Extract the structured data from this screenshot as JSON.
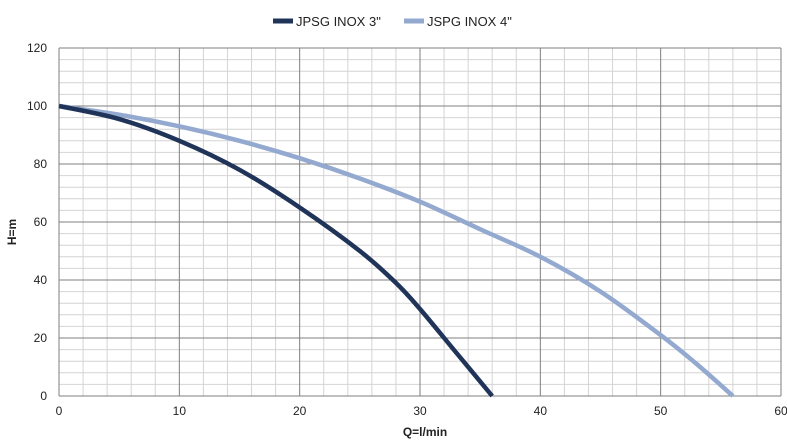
{
  "chart_data": {
    "type": "line",
    "title": "",
    "xlabel": "Q=l/min",
    "ylabel": "H=m",
    "xlim": [
      0,
      60
    ],
    "ylim": [
      0,
      120
    ],
    "x_major_ticks": [
      0,
      10,
      20,
      30,
      40,
      50,
      60
    ],
    "y_major_ticks": [
      0,
      20,
      40,
      60,
      80,
      100,
      120
    ],
    "x_minor_step": 2,
    "y_minor_step": 4,
    "grid": true,
    "legend_position": "top-center",
    "series": [
      {
        "name": "JPSG INOX 3\"",
        "color": "#1f3458",
        "points": [
          [
            0,
            100
          ],
          [
            5,
            95.5
          ],
          [
            10,
            88
          ],
          [
            15,
            78
          ],
          [
            20,
            65
          ],
          [
            25,
            50
          ],
          [
            28,
            39
          ],
          [
            30,
            30
          ],
          [
            33,
            15
          ],
          [
            36,
            0
          ]
        ]
      },
      {
        "name": "JSPG INOX 4\"",
        "color": "#93a9cf",
        "points": [
          [
            0,
            100
          ],
          [
            5,
            97
          ],
          [
            10,
            93
          ],
          [
            15,
            88
          ],
          [
            20,
            82
          ],
          [
            25,
            75
          ],
          [
            30,
            67
          ],
          [
            35,
            57.5
          ],
          [
            40,
            48
          ],
          [
            45,
            36
          ],
          [
            50,
            21
          ],
          [
            53,
            11
          ],
          [
            56,
            0
          ]
        ]
      }
    ]
  }
}
